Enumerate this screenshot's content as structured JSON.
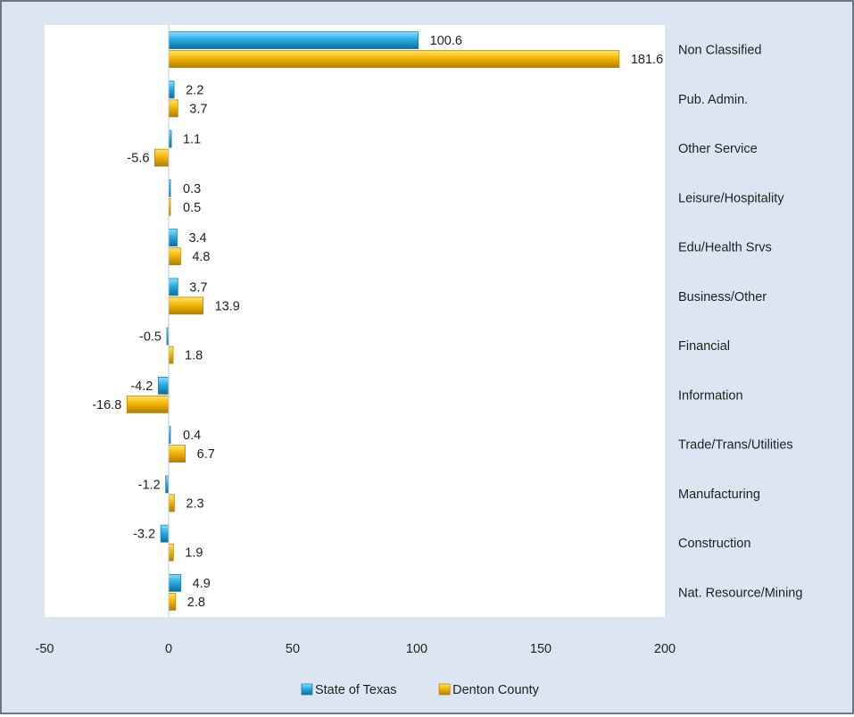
{
  "chart_data": {
    "type": "bar",
    "orientation": "horizontal",
    "title": "",
    "xlabel": "",
    "ylabel": "",
    "categories": [
      "Non Classified",
      "Pub. Admin.",
      "Other Service",
      "Leisure/Hospitality",
      "Edu/Health Srvs",
      "Business/Other",
      "Financial",
      "Information",
      "Trade/Trans/Utilities",
      "Manufacturing",
      "Construction",
      "Nat. Resource/Mining"
    ],
    "series": [
      {
        "name": "State of Texas",
        "color": "#29abe2",
        "values": [
          100.6,
          2.2,
          1.1,
          0.3,
          3.4,
          3.7,
          -0.5,
          -4.2,
          0.4,
          -1.2,
          -3.2,
          4.9
        ],
        "labels": [
          "100.6",
          "2.2",
          "1.1",
          "0.3",
          "3.4",
          "3.7",
          "-0.5",
          "-4.2",
          "0.4",
          "-1.2",
          "-3.2",
          "4.9"
        ]
      },
      {
        "name": "Denton County",
        "color": "#f5b800",
        "values": [
          181.6,
          3.7,
          -5.6,
          0.5,
          4.8,
          13.9,
          1.8,
          -16.8,
          6.7,
          2.3,
          1.9,
          2.8
        ],
        "labels": [
          "181.6",
          "3.7",
          "-5.6",
          "0.5",
          "4.8",
          "13.9",
          "1.8",
          "-16.8",
          "6.7",
          "2.3",
          "1.9",
          "2.8"
        ]
      }
    ],
    "xlim": [
      -50,
      200
    ],
    "xticks": [
      -50,
      0,
      50,
      100,
      150,
      200
    ],
    "xtick_labels": [
      "-50",
      "0",
      "50",
      "100",
      "150",
      "200"
    ],
    "grid": false,
    "legend_position": "bottom"
  }
}
